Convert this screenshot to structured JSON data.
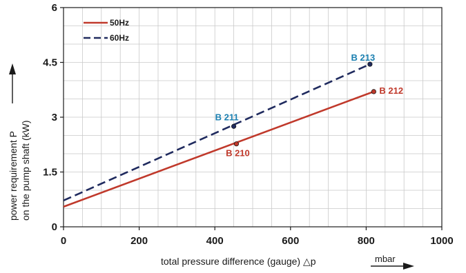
{
  "chart_data": {
    "type": "line",
    "xlabel": "total pressure difference (gauge) △p",
    "xunit": "mbar",
    "ylabel_line1": "power requirement P",
    "ylabel_line2": "on the pump shaft (kW)",
    "xlim": [
      0,
      1000
    ],
    "ylim": [
      0,
      6
    ],
    "xticks": [
      "0",
      "200",
      "400",
      "600",
      "800",
      "1000"
    ],
    "yticks": [
      "0",
      "1.5",
      "3",
      "4.5",
      "6"
    ],
    "grid": true,
    "legend_position": "top-left",
    "series": [
      {
        "name": "50Hz",
        "style": "solid",
        "color": "#c0392b",
        "x": [
          0,
          820
        ],
        "y": [
          0.55,
          3.7
        ],
        "points": [
          {
            "label": "B 210",
            "x": 457,
            "y": 2.27
          },
          {
            "label": "B 212",
            "x": 820,
            "y": 3.7
          }
        ]
      },
      {
        "name": "60Hz",
        "style": "dashed",
        "color": "#1f2a5e",
        "x": [
          0,
          810
        ],
        "y": [
          0.72,
          4.45
        ],
        "points": [
          {
            "label": "B 211",
            "x": 450,
            "y": 2.75
          },
          {
            "label": "B 213",
            "x": 810,
            "y": 4.45
          }
        ]
      }
    ],
    "label_color": "#1a7fb0"
  }
}
